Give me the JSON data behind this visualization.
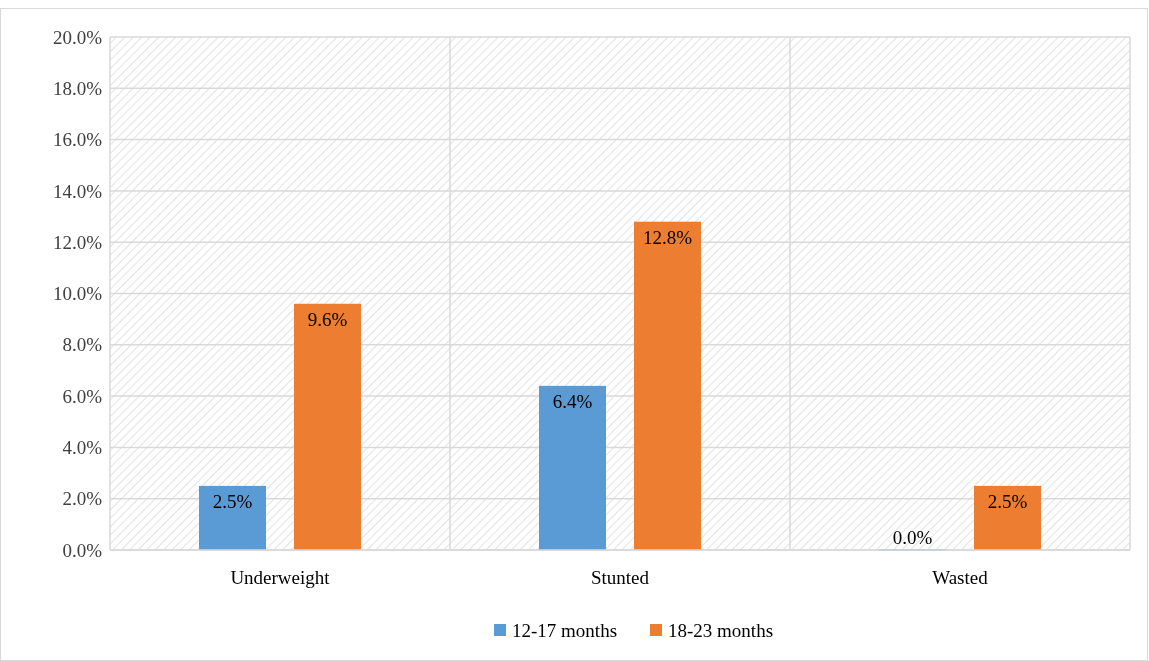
{
  "chart_data": {
    "type": "bar",
    "categories": [
      "Underweight",
      "Stunted",
      "Wasted"
    ],
    "series": [
      {
        "name": "12-17 months",
        "color": "#5b9bd5",
        "values": [
          2.5,
          6.4,
          0
        ],
        "value_labels": [
          "2.5%",
          "6.4%",
          "0.0%"
        ]
      },
      {
        "name": "18-23 months",
        "color": "#ed7d31",
        "values": [
          9.6,
          12.8,
          2.5
        ],
        "value_labels": [
          "9.6%",
          "12.8%",
          "2.5%"
        ]
      }
    ],
    "ylim": [
      0,
      20
    ],
    "yticks": [
      {
        "value": 0,
        "label": "0.0%"
      },
      {
        "value": 2,
        "label": "2.0%"
      },
      {
        "value": 4,
        "label": "4.0%"
      },
      {
        "value": 6,
        "label": "6.0%"
      },
      {
        "value": 8,
        "label": "8.0%"
      },
      {
        "value": 10,
        "label": "10.0%"
      },
      {
        "value": 12,
        "label": "12.0%"
      },
      {
        "value": 14,
        "label": "14.0%"
      },
      {
        "value": 16,
        "label": "16.0%"
      },
      {
        "value": 18,
        "label": "18.0%"
      },
      {
        "value": 20,
        "label": "20.0%"
      }
    ],
    "grid": true,
    "legend": "bottom"
  }
}
